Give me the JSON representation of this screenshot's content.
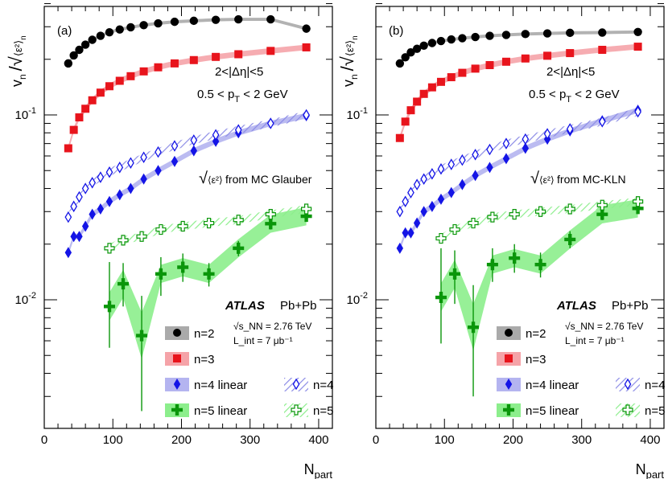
{
  "chart_data": [
    {
      "type": "scatter",
      "panel_label": "(a)",
      "ylabel": "v_n / √⟨ε_n²⟩",
      "xlabel": "N_part",
      "xlim": [
        0,
        420
      ],
      "ylim": [
        0.0022,
        0.5
      ],
      "yscale": "log",
      "x_ticks": [
        "0",
        "100",
        "200",
        "300",
        "400"
      ],
      "y_ticks": [
        "10^-2",
        "10^-1"
      ],
      "cuts": [
        "2<|Δη|<5",
        "0.5 < p_T < 2 GeV"
      ],
      "model_note": "from MC Glauber",
      "experiment": "ATLAS",
      "system": "Pb+Pb",
      "energy": "√s_NN = 2.76 TeV",
      "luminosity": "L_int = 7 μb⁻¹",
      "series": [
        {
          "name": "n=2",
          "color": "#000000",
          "band": "#aaaaaa",
          "marker": "circle",
          "x": [
            35,
            43,
            51,
            60,
            70,
            82,
            95,
            110,
            126,
            145,
            166,
            190,
            218,
            250,
            283,
            330,
            382
          ],
          "y": [
            0.19,
            0.21,
            0.225,
            0.24,
            0.255,
            0.268,
            0.28,
            0.29,
            0.298,
            0.306,
            0.313,
            0.319,
            0.323,
            0.327,
            0.329,
            0.329,
            0.293
          ]
        },
        {
          "name": "n=3",
          "color": "#e8141c",
          "band": "#f5a3a8",
          "marker": "square",
          "x": [
            35,
            43,
            51,
            60,
            70,
            82,
            95,
            110,
            126,
            145,
            166,
            190,
            218,
            250,
            283,
            330,
            382
          ],
          "y": [
            0.066,
            0.083,
            0.097,
            0.108,
            0.12,
            0.132,
            0.143,
            0.153,
            0.162,
            0.172,
            0.181,
            0.19,
            0.198,
            0.206,
            0.213,
            0.222,
            0.232
          ]
        },
        {
          "name": "n=4 linear",
          "color": "#1414e6",
          "band": "#b4b4f0",
          "marker": "diamond",
          "x": [
            35,
            43,
            51,
            60,
            70,
            82,
            95,
            110,
            126,
            145,
            166,
            190,
            218,
            250,
            283,
            330,
            382
          ],
          "y": [
            0.018,
            0.022,
            0.022,
            0.025,
            0.029,
            0.031,
            0.034,
            0.037,
            0.04,
            0.045,
            0.05,
            0.056,
            0.064,
            0.072,
            0.08,
            0.09,
            0.099
          ]
        },
        {
          "name": "n=4",
          "color": "#1414e6",
          "band": "#8c8ce6",
          "marker": "open-diamond",
          "hatched": true,
          "x": [
            35,
            43,
            51,
            60,
            70,
            82,
            95,
            110,
            126,
            145,
            166,
            190,
            218,
            250,
            283,
            330,
            382
          ],
          "y": [
            0.028,
            0.032,
            0.036,
            0.04,
            0.043,
            0.046,
            0.049,
            0.052,
            0.055,
            0.059,
            0.063,
            0.068,
            0.073,
            0.078,
            0.083,
            0.09,
            0.1
          ]
        },
        {
          "name": "n=5 linear",
          "color": "#0a960a",
          "band": "#8cee8c",
          "marker": "cross",
          "x": [
            95,
            115,
            142,
            170,
            202,
            240,
            283,
            330,
            382
          ],
          "y": [
            0.0092,
            0.0122,
            0.0064,
            0.0138,
            0.015,
            0.0138,
            0.019,
            0.0258,
            0.0283
          ]
        },
        {
          "name": "n=5",
          "color": "#0a960a",
          "band": "#8cee8c",
          "marker": "open-cross",
          "hatched": true,
          "x": [
            95,
            115,
            142,
            170,
            202,
            240,
            283,
            330,
            382
          ],
          "y": [
            0.019,
            0.021,
            0.022,
            0.024,
            0.025,
            0.026,
            0.027,
            0.029,
            0.031
          ]
        }
      ]
    },
    {
      "type": "scatter",
      "panel_label": "(b)",
      "ylabel": "v_n / √⟨ε_n²⟩",
      "xlabel": "N_part",
      "xlim": [
        0,
        420
      ],
      "ylim": [
        0.0022,
        0.5
      ],
      "yscale": "log",
      "x_ticks": [
        "0",
        "100",
        "200",
        "300",
        "400"
      ],
      "y_ticks": [
        "10^-2",
        "10^-1"
      ],
      "cuts": [
        "2<|Δη|<5",
        "0.5 < p_T < 2 GeV"
      ],
      "model_note": "from MC-KLN",
      "experiment": "ATLAS",
      "system": "Pb+Pb",
      "energy": "√s_NN = 2.76 TeV",
      "luminosity": "L_int = 7 μb⁻¹",
      "series": [
        {
          "name": "n=2",
          "color": "#000000",
          "band": "#aaaaaa",
          "marker": "circle",
          "x": [
            35,
            43,
            51,
            60,
            70,
            82,
            95,
            110,
            126,
            145,
            166,
            190,
            218,
            250,
            283,
            330,
            382
          ],
          "y": [
            0.19,
            0.205,
            0.218,
            0.228,
            0.237,
            0.245,
            0.251,
            0.256,
            0.26,
            0.264,
            0.268,
            0.271,
            0.274,
            0.276,
            0.278,
            0.279,
            0.281
          ]
        },
        {
          "name": "n=3",
          "color": "#e8141c",
          "band": "#f5a3a8",
          "marker": "square",
          "x": [
            35,
            43,
            51,
            60,
            70,
            82,
            95,
            110,
            126,
            145,
            166,
            190,
            218,
            250,
            283,
            330,
            382
          ],
          "y": [
            0.075,
            0.092,
            0.106,
            0.118,
            0.13,
            0.141,
            0.151,
            0.16,
            0.169,
            0.178,
            0.186,
            0.194,
            0.202,
            0.209,
            0.216,
            0.225,
            0.234
          ]
        },
        {
          "name": "n=4 linear",
          "color": "#1414e6",
          "band": "#b4b4f0",
          "marker": "diamond",
          "x": [
            35,
            43,
            51,
            60,
            70,
            82,
            95,
            110,
            126,
            145,
            166,
            190,
            218,
            250,
            283,
            330,
            382
          ],
          "y": [
            0.019,
            0.023,
            0.023,
            0.026,
            0.03,
            0.032,
            0.035,
            0.038,
            0.042,
            0.047,
            0.052,
            0.058,
            0.066,
            0.074,
            0.082,
            0.093,
            0.106
          ]
        },
        {
          "name": "n=4",
          "color": "#1414e6",
          "band": "#8c8ce6",
          "marker": "open-diamond",
          "hatched": true,
          "x": [
            35,
            43,
            51,
            60,
            70,
            82,
            95,
            110,
            126,
            145,
            166,
            190,
            218,
            250,
            283,
            330,
            382
          ],
          "y": [
            0.03,
            0.034,
            0.038,
            0.042,
            0.045,
            0.048,
            0.051,
            0.054,
            0.057,
            0.061,
            0.065,
            0.07,
            0.074,
            0.079,
            0.084,
            0.092,
            0.104
          ]
        },
        {
          "name": "n=5 linear",
          "color": "#0a960a",
          "band": "#8cee8c",
          "marker": "cross",
          "x": [
            95,
            115,
            142,
            170,
            202,
            240,
            283,
            330,
            382
          ],
          "y": [
            0.0103,
            0.0138,
            0.0071,
            0.0155,
            0.0168,
            0.0155,
            0.0212,
            0.029,
            0.0312
          ]
        },
        {
          "name": "n=5",
          "color": "#0a960a",
          "band": "#8cee8c",
          "marker": "open-cross",
          "hatched": true,
          "x": [
            95,
            115,
            142,
            170,
            202,
            240,
            283,
            330,
            382
          ],
          "y": [
            0.0215,
            0.024,
            0.026,
            0.028,
            0.029,
            0.03,
            0.031,
            0.0325,
            0.034
          ]
        }
      ]
    }
  ]
}
